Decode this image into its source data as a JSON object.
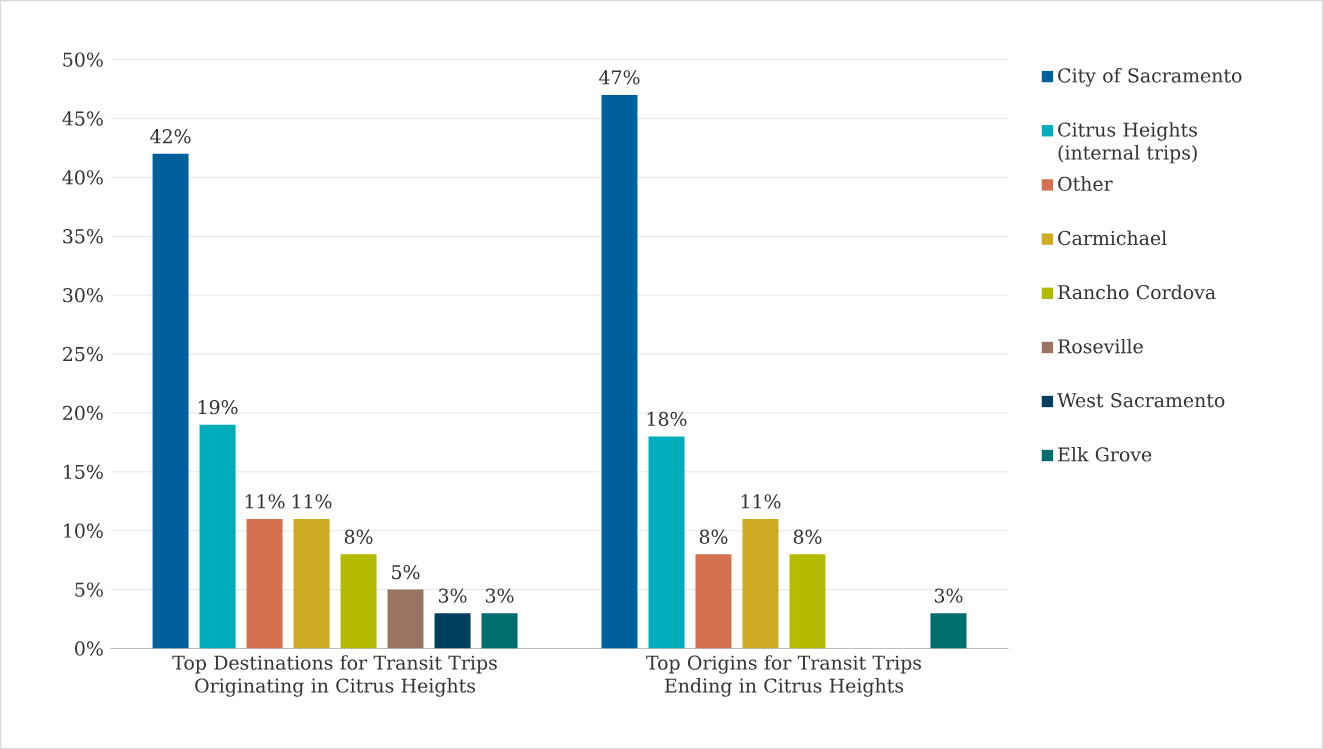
{
  "chart_data": {
    "type": "bar",
    "categories": [
      "Top Destinations for Transit Trips Originating in Citrus Heights",
      "Top Origins for Transit Trips Ending in Citrus Heights"
    ],
    "series": [
      {
        "name": "City of Sacramento",
        "color": "#00609c",
        "values": [
          42,
          47
        ],
        "value_labels": [
          "42%",
          "47%"
        ]
      },
      {
        "name": "Citrus Heights (internal trips)",
        "color": "#00aebb",
        "values": [
          19,
          18
        ],
        "value_labels": [
          "19%",
          "18%"
        ]
      },
      {
        "name": "Other",
        "color": "#d4704f",
        "values": [
          11,
          8
        ],
        "value_labels": [
          "11%",
          "8%"
        ]
      },
      {
        "name": "Carmichael",
        "color": "#cfab23",
        "values": [
          11,
          11
        ],
        "value_labels": [
          "11%",
          "11%"
        ]
      },
      {
        "name": "Rancho Cordova",
        "color": "#b5bb00",
        "values": [
          8,
          8
        ],
        "value_labels": [
          "8%",
          "8%"
        ]
      },
      {
        "name": "Roseville",
        "color": "#9a7463",
        "values": [
          5,
          null
        ],
        "value_labels": [
          "5%",
          null
        ]
      },
      {
        "name": "West Sacramento",
        "color": "#003f5f",
        "values": [
          3,
          null
        ],
        "value_labels": [
          "3%",
          null
        ]
      },
      {
        "name": "Elk Grove",
        "color": "#006e6e",
        "values": [
          3,
          3
        ],
        "value_labels": [
          "3%",
          "3%"
        ]
      }
    ],
    "ylim": [
      0,
      50
    ],
    "yticks": [
      {
        "value": 0,
        "label": "0%"
      },
      {
        "value": 5,
        "label": "5%"
      },
      {
        "value": 10,
        "label": "10%"
      },
      {
        "value": 15,
        "label": "15%"
      },
      {
        "value": 20,
        "label": "20%"
      },
      {
        "value": 25,
        "label": "25%"
      },
      {
        "value": 30,
        "label": "30%"
      },
      {
        "value": 35,
        "label": "35%"
      },
      {
        "value": 40,
        "label": "40%"
      },
      {
        "value": 45,
        "label": "45%"
      },
      {
        "value": 50,
        "label": "50%"
      }
    ],
    "grid": "y",
    "legend": "right"
  }
}
